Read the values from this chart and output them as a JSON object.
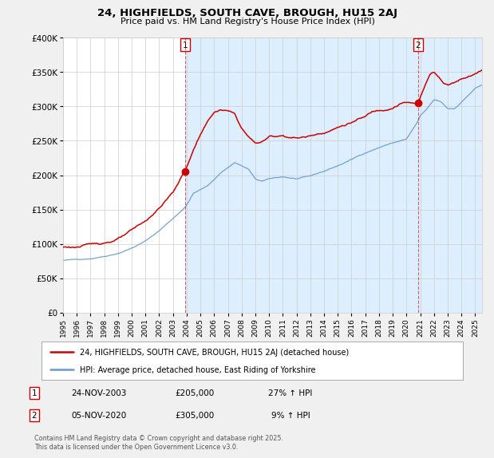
{
  "title": "24, HIGHFIELDS, SOUTH CAVE, BROUGH, HU15 2AJ",
  "subtitle": "Price paid vs. HM Land Registry's House Price Index (HPI)",
  "ylim": [
    0,
    400000
  ],
  "yticks": [
    0,
    50000,
    100000,
    150000,
    200000,
    250000,
    300000,
    350000,
    400000
  ],
  "ytick_labels": [
    "£0",
    "£50K",
    "£100K",
    "£150K",
    "£200K",
    "£250K",
    "£300K",
    "£350K",
    "£400K"
  ],
  "bg_color": "#f0f0f0",
  "plot_bg_color": "#ffffff",
  "plot_highlight_color": "#ddeeff",
  "red_color": "#cc0000",
  "blue_color": "#6699cc",
  "annotation1_date": "24-NOV-2003",
  "annotation1_price": 205000,
  "annotation1_hpi": "27% ↑ HPI",
  "annotation2_date": "05-NOV-2020",
  "annotation2_price": 305000,
  "annotation2_hpi": "9% ↑ HPI",
  "legend_label1": "24, HIGHFIELDS, SOUTH CAVE, BROUGH, HU15 2AJ (detached house)",
  "legend_label2": "HPI: Average price, detached house, East Riding of Yorkshire",
  "footer": "Contains HM Land Registry data © Crown copyright and database right 2025.\nThis data is licensed under the Open Government Licence v3.0.",
  "sale1_x": 2003.9,
  "sale1_y": 205000,
  "sale2_x": 2020.85,
  "sale2_y": 305000,
  "x_start": 1995,
  "x_end": 2025.5,
  "xtick_years": [
    1995,
    1996,
    1997,
    1998,
    1999,
    2000,
    2001,
    2002,
    2003,
    2004,
    2005,
    2006,
    2007,
    2008,
    2009,
    2010,
    2011,
    2012,
    2013,
    2014,
    2015,
    2016,
    2017,
    2018,
    2019,
    2020,
    2021,
    2022,
    2023,
    2024,
    2025
  ]
}
